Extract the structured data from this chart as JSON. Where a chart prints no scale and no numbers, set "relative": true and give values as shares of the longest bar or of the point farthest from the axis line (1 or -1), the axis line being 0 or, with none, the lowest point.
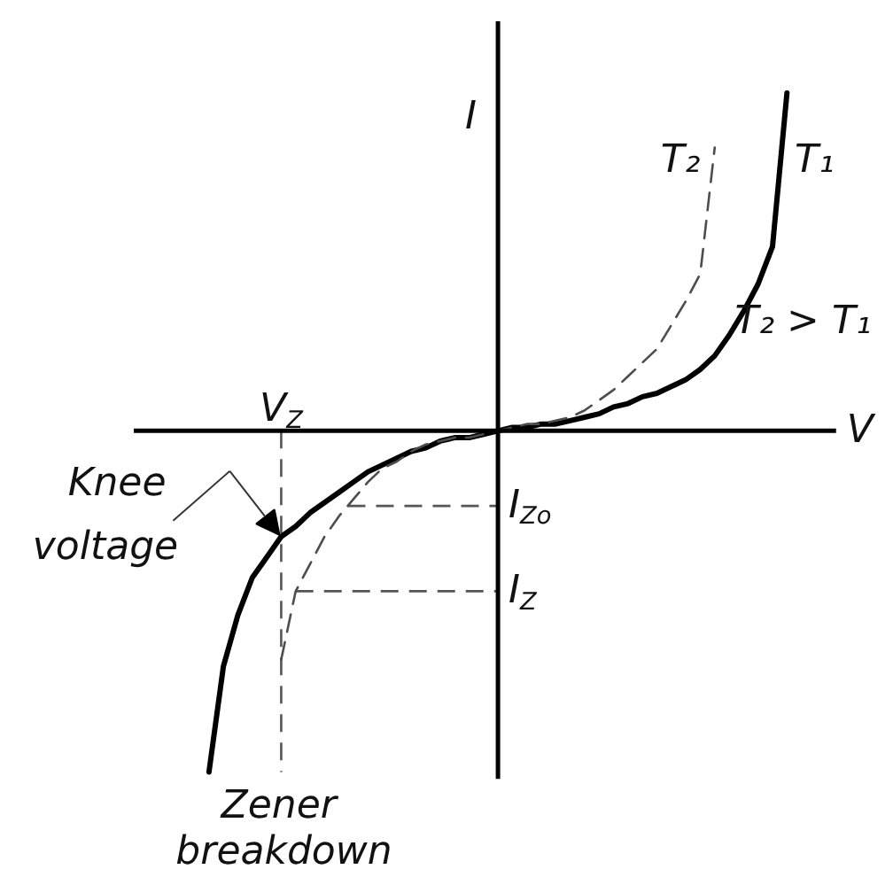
{
  "chart_data": {
    "type": "line",
    "relative": true,
    "xlabel": "V",
    "ylabel": "I",
    "categories": [
      null,
      null,
      null,
      null,
      null,
      null,
      null,
      null,
      null,
      null,
      null,
      null,
      null,
      null,
      null,
      null,
      null,
      null,
      null,
      null,
      null,
      null,
      null,
      null,
      null,
      null,
      null,
      null,
      null,
      null,
      null,
      null,
      null,
      null,
      null,
      null,
      null,
      null,
      null,
      null,
      null
    ],
    "series": [
      {
        "name": "T₁",
        "color": "#000000",
        "line_style": "solid",
        "values": [
          -1.0,
          -0.69,
          -0.54,
          -0.43,
          -0.37,
          -0.31,
          -0.28,
          -0.24,
          -0.21,
          -0.18,
          -0.15,
          -0.12,
          -0.1,
          -0.08,
          -0.06,
          -0.05,
          -0.03,
          -0.02,
          -0.02,
          -0.01,
          0,
          0.01,
          0.01,
          0.02,
          0.02,
          0.03,
          0.04,
          0.05,
          0.07,
          0.08,
          0.1,
          0.11,
          0.13,
          0.15,
          0.18,
          0.22,
          0.28,
          0.35,
          0.43,
          0.54,
          0.99
        ]
      },
      {
        "name": "T₂",
        "color": "#4d4d4d",
        "line_style": "dashed",
        "values": [
          null,
          null,
          null,
          null,
          null,
          -0.67,
          -0.47,
          -0.39,
          -0.31,
          -0.25,
          -0.2,
          -0.15,
          -0.11,
          -0.09,
          -0.06,
          -0.04,
          -0.03,
          -0.02,
          -0.02,
          -0.01,
          0,
          0.01,
          0.02,
          0.02,
          0.03,
          0.04,
          0.06,
          0.09,
          0.12,
          0.16,
          0.2,
          0.24,
          0.31,
          0.38,
          0.46,
          0.83,
          null,
          null,
          null,
          null,
          null
        ]
      }
    ],
    "ref_lines": [
      {
        "axis": "x",
        "label": "V$_{Z}$",
        "color": "#555555",
        "line_style": "dashed"
      },
      {
        "axis": "y",
        "value": -0.22,
        "label": "I$_{Zo}$",
        "color": "#555555",
        "line_style": "dashed"
      },
      {
        "axis": "y",
        "value": -0.47,
        "label": "I$_{Z}$",
        "color": "#555555",
        "line_style": "dashed"
      }
    ],
    "annotations": [
      "T₂ > T₁",
      "Knee voltage",
      "Zener breakdown"
    ]
  }
}
